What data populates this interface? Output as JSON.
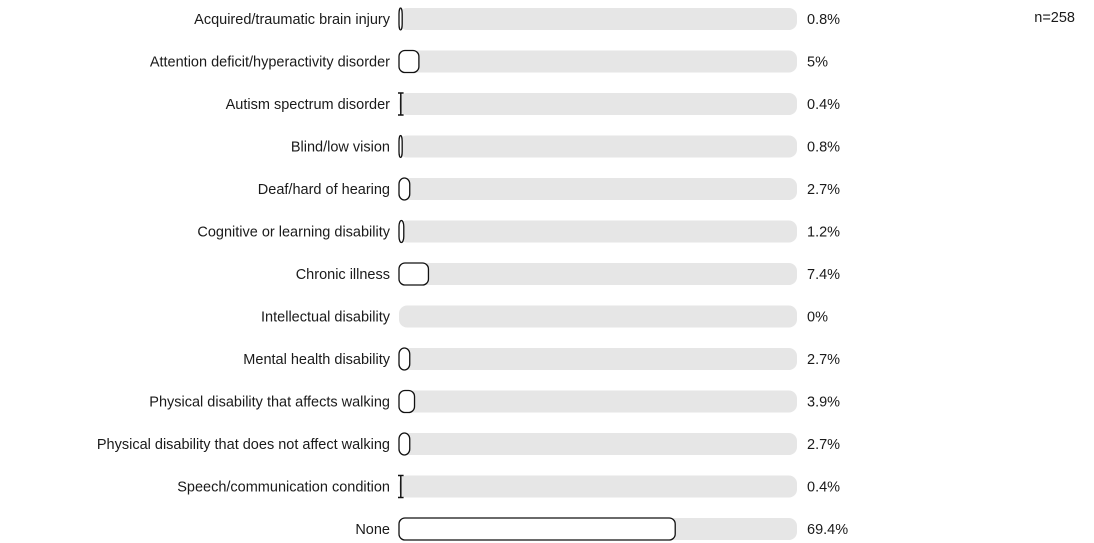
{
  "chart_data": {
    "type": "bar",
    "orientation": "horizontal",
    "sample_size_label": "n=258",
    "xlim": [
      0,
      100
    ],
    "unit": "%",
    "grid": false,
    "legend": false,
    "categories": [
      "Acquired/traumatic brain injury",
      "Attention deficit/hyperactivity disorder",
      "Autism spectrum disorder",
      "Blind/low vision",
      "Deaf/hard of hearing",
      "Cognitive or learning disability",
      "Chronic illness",
      "Intellectual disability",
      "Mental health disability",
      "Physical disability that affects walking",
      "Physical disability that does not affect walking",
      "Speech/communication condition",
      "None"
    ],
    "values": [
      0.8,
      5,
      0.4,
      0.8,
      2.7,
      1.2,
      7.4,
      0,
      2.7,
      3.9,
      2.7,
      0.4,
      69.4
    ],
    "value_labels": [
      "0.8%",
      "5%",
      "0.4%",
      "0.8%",
      "2.7%",
      "1.2%",
      "7.4%",
      "0%",
      "2.7%",
      "3.9%",
      "2.7%",
      "0.4%",
      "69.4%"
    ],
    "colors": {
      "track": "#e6e6e6",
      "bar_fill": "#ffffff",
      "bar_stroke": "#111111",
      "text": "#1a1a1a"
    }
  }
}
